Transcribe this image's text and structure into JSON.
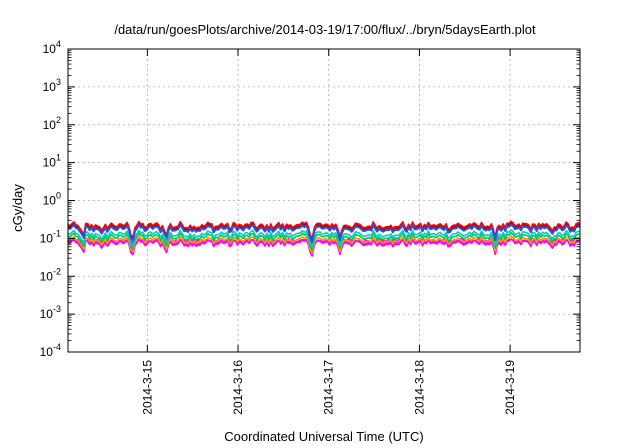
{
  "chart_data": {
    "type": "line",
    "title": "/data/run/goesPlots/archive/2014-03-19/17:00/flux/../bryn/5daysEarth.plot",
    "xlabel": "Coordinated Universal Time (UTC)",
    "ylabel": "cGy/day",
    "y_scale": "log",
    "ylim": [
      0.0001,
      10000
    ],
    "xlim": [
      "2014-03-14 03:00",
      "2014-03-19 18:30"
    ],
    "grid": true,
    "legend": "none",
    "y_ticks": [
      {
        "value": 0.0001,
        "base": "10",
        "exp": "-4"
      },
      {
        "value": 0.001,
        "base": "10",
        "exp": "-3"
      },
      {
        "value": 0.01,
        "base": "10",
        "exp": "-2"
      },
      {
        "value": 0.1,
        "base": "10",
        "exp": "-1"
      },
      {
        "value": 1,
        "base": "10",
        "exp": "0"
      },
      {
        "value": 10,
        "base": "10",
        "exp": "1"
      },
      {
        "value": 100,
        "base": "10",
        "exp": "2"
      },
      {
        "value": 1000,
        "base": "10",
        "exp": "3"
      },
      {
        "value": 10000,
        "base": "10",
        "exp": "4"
      }
    ],
    "x_ticks": [
      {
        "value": "2014-03-15",
        "label": "2014-3-15"
      },
      {
        "value": "2014-03-16",
        "label": "2014-3-16"
      },
      {
        "value": "2014-03-17",
        "label": "2014-3-17"
      },
      {
        "value": "2014-03-18",
        "label": "2014-3-18"
      },
      {
        "value": "2014-03-19",
        "label": "2014-3-19"
      }
    ],
    "series": [
      {
        "color": "#ff00ff",
        "typical": 0.075,
        "fill": true
      },
      {
        "color": "#ff9900",
        "typical": 0.09
      },
      {
        "color": "#00cc44",
        "typical": 0.11
      },
      {
        "color": "#00cccc",
        "typical": 0.13
      },
      {
        "color": "#990000",
        "typical": 0.2
      },
      {
        "color": "#ff0000",
        "typical": 0.22
      },
      {
        "color": "#2a52e0",
        "typical": 0.18
      }
    ],
    "dips": [
      {
        "t": "2014-03-14 07:00",
        "value": 0.035
      },
      {
        "t": "2014-03-14 12:00",
        "value": 0.05
      },
      {
        "t": "2014-03-14 20:00",
        "value": 0.03
      },
      {
        "t": "2014-03-15 05:00",
        "value": 0.04
      },
      {
        "t": "2014-03-15 13:00",
        "value": 0.06
      },
      {
        "t": "2014-03-15 22:00",
        "value": 0.06
      },
      {
        "t": "2014-03-16 07:00",
        "value": 0.06
      },
      {
        "t": "2014-03-16 19:30",
        "value": 0.03
      },
      {
        "t": "2014-03-17 03:00",
        "value": 0.035
      },
      {
        "t": "2014-03-17 09:00",
        "value": 0.06
      },
      {
        "t": "2014-03-17 17:00",
        "value": 0.06
      },
      {
        "t": "2014-03-18 20:00",
        "value": 0.035
      },
      {
        "t": "2014-03-19 11:00",
        "value": 0.05
      },
      {
        "t": "2014-03-19 16:00",
        "value": 0.06
      }
    ]
  }
}
